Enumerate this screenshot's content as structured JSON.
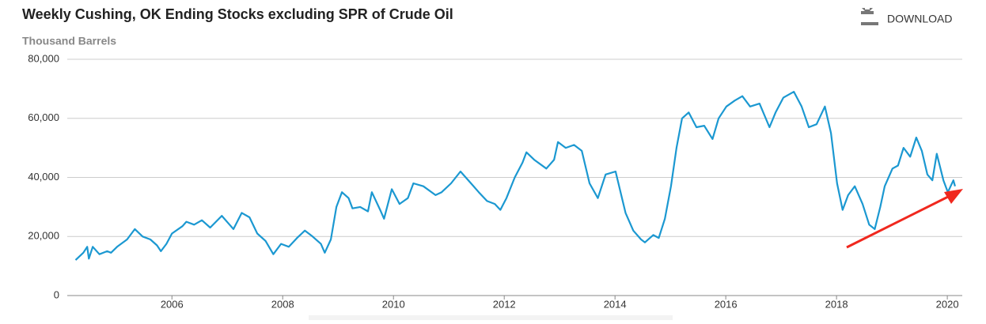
{
  "chart_data": {
    "type": "line",
    "title": "Weekly Cushing, OK Ending Stocks excluding SPR of Crude Oil",
    "subtitle": "Thousand Barrels",
    "download": "DOWNLOAD",
    "color": "#1b98d1",
    "grid": true,
    "xlim": [
      2004.11,
      2020.27
    ],
    "xticks": [
      2006,
      2008,
      2010,
      2012,
      2014,
      2016,
      2018,
      2020
    ],
    "ylim": [
      0,
      80000
    ],
    "yticks": [
      0,
      {
        "value": 20000,
        "label": "20,000"
      },
      {
        "value": 40000,
        "label": "40,000"
      },
      {
        "value": 60000,
        "label": "60,000"
      },
      {
        "value": 80000,
        "label": "80,000"
      }
    ],
    "x": [
      2004.26,
      2004.4,
      2004.47,
      2004.5,
      2004.57,
      2004.69,
      2004.83,
      2004.9,
      2005.01,
      2005.19,
      2005.33,
      2005.47,
      2005.61,
      2005.73,
      2005.8,
      2005.9,
      2006.0,
      2006.19,
      2006.26,
      2006.4,
      2006.54,
      2006.69,
      2006.9,
      2007.04,
      2007.11,
      2007.26,
      2007.4,
      2007.54,
      2007.69,
      2007.83,
      2007.97,
      2008.11,
      2008.26,
      2008.4,
      2008.54,
      2008.69,
      2008.76,
      2008.87,
      2008.97,
      2009.07,
      2009.19,
      2009.26,
      2009.4,
      2009.54,
      2009.61,
      2009.76,
      2009.83,
      2009.97,
      2010.11,
      2010.26,
      2010.36,
      2010.54,
      2010.76,
      2010.87,
      2011.04,
      2011.21,
      2011.4,
      2011.54,
      2011.69,
      2011.83,
      2011.93,
      2012.04,
      2012.19,
      2012.33,
      2012.4,
      2012.54,
      2012.76,
      2012.9,
      2012.97,
      2013.11,
      2013.26,
      2013.4,
      2013.54,
      2013.69,
      2013.83,
      2014.01,
      2014.19,
      2014.33,
      2014.47,
      2014.54,
      2014.69,
      2014.79,
      2014.9,
      2015.01,
      2015.11,
      2015.21,
      2015.33,
      2015.47,
      2015.61,
      2015.76,
      2015.87,
      2016.01,
      2016.16,
      2016.3,
      2016.44,
      2016.61,
      2016.79,
      2016.9,
      2017.04,
      2017.23,
      2017.37,
      2017.5,
      2017.64,
      2017.79,
      2017.9,
      2018.01,
      2018.11,
      2018.21,
      2018.33,
      2018.47,
      2018.59,
      2018.69,
      2018.79,
      2018.87,
      2019.01,
      2019.11,
      2019.21,
      2019.33,
      2019.44,
      2019.54,
      2019.64,
      2019.73,
      2019.81,
      2019.93,
      2020.01,
      2020.11,
      2020.14
    ],
    "values": [
      12000,
      14500,
      16500,
      12500,
      16500,
      14000,
      15000,
      14500,
      16500,
      19000,
      22500,
      20000,
      19000,
      17000,
      15000,
      17500,
      21000,
      23500,
      25000,
      24000,
      25500,
      23000,
      27000,
      24000,
      22500,
      28000,
      26500,
      21000,
      18500,
      14000,
      17500,
      16500,
      19500,
      22000,
      20000,
      17500,
      14500,
      19000,
      30000,
      35000,
      33000,
      29500,
      30000,
      28500,
      35000,
      29000,
      26000,
      36000,
      31000,
      33000,
      38000,
      37000,
      34000,
      35000,
      38000,
      42000,
      38000,
      35000,
      32000,
      31000,
      29000,
      33000,
      40000,
      45000,
      48500,
      46000,
      43000,
      46000,
      52000,
      50000,
      51000,
      49000,
      38000,
      33000,
      41000,
      42000,
      28000,
      22000,
      19000,
      18000,
      20500,
      19500,
      26000,
      37000,
      50000,
      60000,
      62000,
      57000,
      57500,
      53000,
      60000,
      64000,
      66000,
      67500,
      64000,
      65000,
      57000,
      62000,
      67000,
      69000,
      64000,
      57000,
      58000,
      64000,
      55000,
      38000,
      29000,
      34000,
      37000,
      31000,
      24000,
      22500,
      30000,
      37000,
      43000,
      44000,
      50000,
      47000,
      53500,
      49000,
      41000,
      39000,
      48000,
      39000,
      35000,
      39000,
      37000
    ]
  }
}
